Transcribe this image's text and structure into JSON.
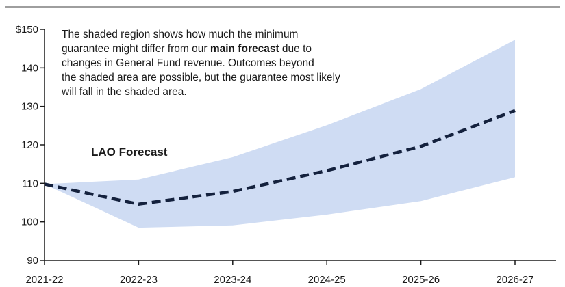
{
  "chart_data": {
    "type": "line",
    "x": [
      "2021-22",
      "2022-23",
      "2023-24",
      "2024-25",
      "2025-26",
      "2026-27"
    ],
    "ylim": [
      90,
      150
    ],
    "yticks": [
      90,
      100,
      110,
      120,
      130,
      140,
      150
    ],
    "ytick_labels": [
      "90",
      "100",
      "110",
      "120",
      "130",
      "140",
      "$150"
    ],
    "grid": false,
    "series": [
      {
        "name": "LAO Forecast",
        "values": [
          109.8,
          104.6,
          107.9,
          113.3,
          119.6,
          128.9
        ],
        "style": "dashed"
      }
    ],
    "band": {
      "upper": [
        109.8,
        111.0,
        116.8,
        125.1,
        134.5,
        147.3
      ],
      "lower": [
        109.8,
        98.5,
        99.1,
        101.9,
        105.4,
        111.6
      ]
    },
    "annotation": [
      [
        {
          "text": "The shaded region shows how much the minimum",
          "bold": false
        }
      ],
      [
        {
          "text": "guarantee might differ from our ",
          "bold": false
        },
        {
          "text": "main forecast",
          "bold": true
        },
        {
          "text": " due to",
          "bold": false
        }
      ],
      [
        {
          "text": "changes in General Fund revenue. Outcomes beyond",
          "bold": false
        }
      ],
      [
        {
          "text": "the shaded area are possible, but the guarantee most likely",
          "bold": false
        }
      ],
      [
        {
          "text": "will fall in the shaded area.",
          "bold": false
        }
      ]
    ],
    "colors": {
      "line": "#14213d",
      "band": "#cfdcf3",
      "axis": "#1a1a1a",
      "rule": "#7f7f7f"
    }
  }
}
